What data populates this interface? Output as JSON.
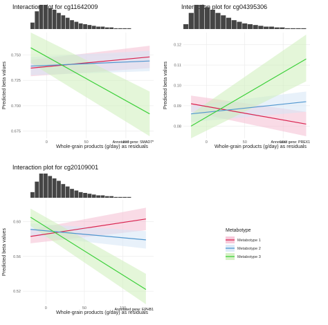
{
  "chart_data": [
    {
      "type": "line",
      "title": "Interaction plot for cg11642009",
      "xlabel": "Whole-grain products (g/day) as residuals",
      "ylabel": "Predicted beta values",
      "annotation": "Annotated gene: SMAD7*",
      "xlim": [
        -30,
        135
      ],
      "ylim": [
        0.668,
        0.772
      ],
      "xticks": [
        0,
        50,
        100
      ],
      "yticks": [
        0.675,
        0.7,
        0.725,
        0.75
      ],
      "ytick_labels": [
        "0.675",
        "0.700",
        "0.725",
        "0.750"
      ],
      "grid": true,
      "histogram": [
        8,
        22,
        30,
        30,
        26,
        24,
        20,
        17,
        14,
        11,
        9,
        7,
        6,
        5,
        4,
        3,
        3,
        2,
        2,
        1,
        1,
        1,
        1
      ],
      "series": [
        {
          "name": "Metabotype 1",
          "x": [
            -20,
            130
          ],
          "y": [
            0.737,
            0.748
          ],
          "lower": [
            0.729,
            0.737
          ],
          "upper": [
            0.745,
            0.759
          ]
        },
        {
          "name": "Metabotype 2",
          "x": [
            -20,
            130
          ],
          "y": [
            0.739,
            0.744
          ],
          "lower": [
            0.73,
            0.734
          ],
          "upper": [
            0.748,
            0.754
          ]
        },
        {
          "name": "Metabotype 3",
          "x": [
            -20,
            130
          ],
          "y": [
            0.757,
            0.692
          ],
          "lower": [
            0.742,
            0.67
          ],
          "upper": [
            0.772,
            0.714
          ]
        }
      ]
    },
    {
      "type": "line",
      "title": "Interaction plot for cg04395306",
      "xlabel": "Whole-grain products (g/day) as residuals",
      "ylabel": "Predicted beta values",
      "annotation": "Annotated gene: PREX1",
      "xlim": [
        -30,
        135
      ],
      "ylim": [
        0.074,
        0.126
      ],
      "xticks": [
        0,
        50,
        100
      ],
      "yticks": [
        0.08,
        0.09,
        0.1,
        0.11,
        0.12
      ],
      "ytick_labels": [
        "0.08",
        "0.09",
        "0.10",
        "0.11",
        "0.12"
      ],
      "grid": true,
      "histogram": [
        6,
        20,
        30,
        30,
        27,
        24,
        20,
        17,
        14,
        11,
        9,
        7,
        6,
        5,
        4,
        3,
        3,
        2,
        2,
        1,
        1,
        1,
        1
      ],
      "series": [
        {
          "name": "Metabotype 1",
          "x": [
            -20,
            130
          ],
          "y": [
            0.091,
            0.081
          ],
          "lower": [
            0.087,
            0.075
          ],
          "upper": [
            0.095,
            0.087
          ]
        },
        {
          "name": "Metabotype 2",
          "x": [
            -20,
            130
          ],
          "y": [
            0.086,
            0.092
          ],
          "lower": [
            0.082,
            0.087
          ],
          "upper": [
            0.09,
            0.097
          ]
        },
        {
          "name": "Metabotype 3",
          "x": [
            -20,
            130
          ],
          "y": [
            0.08,
            0.113
          ],
          "lower": [
            0.074,
            0.102
          ],
          "upper": [
            0.086,
            0.125
          ]
        }
      ]
    },
    {
      "type": "line",
      "title": "Interaction plot for cg20109001",
      "xlabel": "Whole-grain products (g/day) as residuals",
      "ylabel": "Predicted beta values",
      "annotation": "Annotated gene: EPHB1",
      "xlim": [
        -30,
        140
      ],
      "ylim": [
        0.505,
        0.625
      ],
      "xticks": [
        0,
        50,
        100
      ],
      "yticks": [
        0.52,
        0.56,
        0.6
      ],
      "ytick_labels": [
        "0.52",
        "0.56",
        "0.60"
      ],
      "grid": true,
      "histogram": [
        7,
        20,
        30,
        30,
        27,
        24,
        21,
        17,
        14,
        11,
        9,
        7,
        6,
        5,
        4,
        3,
        3,
        2,
        2,
        1,
        1,
        1,
        1
      ],
      "series": [
        {
          "name": "Metabotype 1",
          "x": [
            -20,
            130
          ],
          "y": [
            0.583,
            0.603
          ],
          "lower": [
            0.575,
            0.59
          ],
          "upper": [
            0.591,
            0.616
          ]
        },
        {
          "name": "Metabotype 2",
          "x": [
            -20,
            130
          ],
          "y": [
            0.591,
            0.579
          ],
          "lower": [
            0.584,
            0.569
          ],
          "upper": [
            0.598,
            0.589
          ]
        },
        {
          "name": "Metabotype 3",
          "x": [
            -20,
            130
          ],
          "y": [
            0.605,
            0.522
          ],
          "lower": [
            0.595,
            0.505
          ],
          "upper": [
            0.615,
            0.54
          ]
        }
      ]
    }
  ],
  "legend": {
    "title": "Metabotype",
    "items": [
      {
        "label": "Metabotype 1",
        "color": "#d9234f"
      },
      {
        "label": "Metabotype 2",
        "color": "#4f96cf"
      },
      {
        "label": "Metabotype 3",
        "color": "#3cd03a"
      }
    ]
  },
  "colors": {
    "band": [
      "#f4bdd2",
      "#d6e6f6",
      "#cdeeb9"
    ],
    "histogram": "#454545",
    "grid": "#e9e9e9"
  }
}
